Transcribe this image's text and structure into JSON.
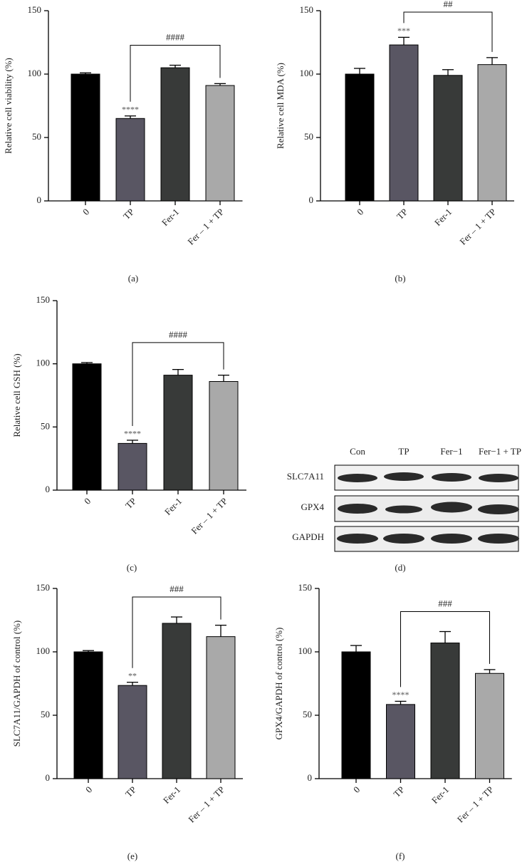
{
  "chart_data": [
    {
      "type": "bar",
      "y_label": "Relative cell viability (%)",
      "panel_label": "(a)",
      "categories": [
        "0",
        "TP",
        "Fer-1",
        "Fer – 1 + TP"
      ],
      "values": [
        100,
        65,
        105,
        91
      ],
      "errors": [
        1,
        2,
        2,
        1.5
      ],
      "colors": [
        "#000000",
        "#595663",
        "#383a39",
        "#a9a9a9"
      ],
      "star_labels": [
        null,
        "****",
        null,
        null
      ],
      "bracket_label": "####",
      "ylim": [
        0,
        150
      ],
      "yticks": [
        0,
        50,
        100,
        150
      ]
    },
    {
      "type": "bar",
      "y_label": "Relative cell MDA (%)",
      "panel_label": "(b)",
      "categories": [
        "0",
        "TP",
        "Fer-1",
        "Fer – 1 + TP"
      ],
      "values": [
        100,
        123,
        99,
        107.5
      ],
      "errors": [
        4.5,
        6,
        4.5,
        5.5
      ],
      "colors": [
        "#000000",
        "#595663",
        "#383a39",
        "#a9a9a9"
      ],
      "star_labels": [
        null,
        "***",
        null,
        null
      ],
      "bracket_label": "##",
      "ylim": [
        0,
        150
      ],
      "yticks": [
        0,
        50,
        100,
        150
      ]
    },
    {
      "type": "bar",
      "y_label": "Relative cell GSH (%)",
      "panel_label": "(c)",
      "categories": [
        "0",
        "TP",
        "Fer-1",
        "Fer – 1 + TP"
      ],
      "values": [
        100,
        37,
        91,
        86
      ],
      "errors": [
        1,
        2.5,
        4.5,
        5
      ],
      "colors": [
        "#000000",
        "#595663",
        "#383a39",
        "#a9a9a9"
      ],
      "star_labels": [
        null,
        "****",
        null,
        null
      ],
      "bracket_label": "####",
      "ylim": [
        0,
        150
      ],
      "yticks": [
        0,
        50,
        100,
        150
      ]
    },
    {
      "type": "bar",
      "y_label": "SLC7A11/GAPDH of control (%)",
      "panel_label": "(e)",
      "categories": [
        "0",
        "TP",
        "Fer-1",
        "Fer – 1 + TP"
      ],
      "values": [
        100,
        73.5,
        122.5,
        112
      ],
      "errors": [
        1,
        2.5,
        5,
        9
      ],
      "colors": [
        "#000000",
        "#595663",
        "#383a39",
        "#a9a9a9"
      ],
      "star_labels": [
        null,
        "**",
        null,
        null
      ],
      "bracket_label": "###",
      "ylim": [
        0,
        150
      ],
      "yticks": [
        0,
        50,
        100,
        150
      ]
    },
    {
      "type": "bar",
      "y_label": "GPX4/GAPDH of control (%)",
      "panel_label": "(f)",
      "categories": [
        "0",
        "TP",
        "Fer-1",
        "Fer – 1 + TP"
      ],
      "values": [
        100,
        58.5,
        107,
        83
      ],
      "errors": [
        5,
        2.5,
        9,
        3
      ],
      "colors": [
        "#000000",
        "#595663",
        "#383a39",
        "#a9a9a9"
      ],
      "star_labels": [
        null,
        "****",
        null,
        null
      ],
      "bracket_label": "###",
      "ylim": [
        0,
        150
      ],
      "yticks": [
        0,
        50,
        100,
        150
      ]
    }
  ],
  "blot": {
    "panel_label": "(d)",
    "columns": [
      "Con",
      "TP",
      "Fer−1",
      "Fer−1 + TP"
    ],
    "rows": [
      "SLC7A11",
      "GPX4",
      "GAPDH"
    ]
  }
}
